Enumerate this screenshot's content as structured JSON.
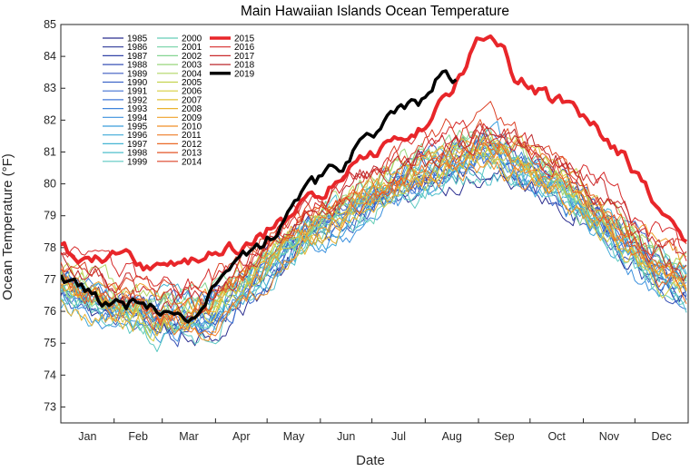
{
  "chart_data": {
    "type": "line",
    "title": "Main Hawaiian Islands Ocean Temperature",
    "xlabel": "Date",
    "ylabel": "Ocean Temperature (°F)",
    "x_ticks": [
      "Jan",
      "Feb",
      "Mar",
      "Apr",
      "May",
      "Jun",
      "Jul",
      "Aug",
      "Sep",
      "Oct",
      "Nov",
      "Dec"
    ],
    "x_range_days": [
      1,
      366
    ],
    "ylim": [
      72.5,
      85
    ],
    "y_ticks": [
      73,
      74,
      75,
      76,
      77,
      78,
      79,
      80,
      81,
      82,
      83,
      84,
      85
    ],
    "grid": false,
    "legend_placement": "top-left",
    "series": [
      {
        "name": "1985",
        "color": "#2a2d8f",
        "base_offset": -0.9,
        "peak_day": 252
      },
      {
        "name": "1986",
        "color": "#2e3a9a",
        "base_offset": -0.6,
        "peak_day": 248
      },
      {
        "name": "1987",
        "color": "#3345a8",
        "base_offset": -0.5,
        "peak_day": 255
      },
      {
        "name": "1988",
        "color": "#3852b5",
        "base_offset": -0.8,
        "peak_day": 244
      },
      {
        "name": "1989",
        "color": "#3b5cc0",
        "base_offset": -0.4,
        "peak_day": 250
      },
      {
        "name": "1990",
        "color": "#3f66c9",
        "base_offset": -0.3,
        "peak_day": 258
      },
      {
        "name": "1991",
        "color": "#4270d2",
        "base_offset": -0.7,
        "peak_day": 246
      },
      {
        "name": "1992",
        "color": "#4179d8",
        "base_offset": -0.6,
        "peak_day": 252
      },
      {
        "name": "1993",
        "color": "#3f85dc",
        "base_offset": -0.5,
        "peak_day": 249
      },
      {
        "name": "1994",
        "color": "#3c91de",
        "base_offset": -0.9,
        "peak_day": 243
      },
      {
        "name": "1995",
        "color": "#3a9ddc",
        "base_offset": -0.4,
        "peak_day": 254
      },
      {
        "name": "1996",
        "color": "#3ea9d8",
        "base_offset": -0.7,
        "peak_day": 250
      },
      {
        "name": "1997",
        "color": "#45b5d2",
        "base_offset": -0.2,
        "peak_day": 256
      },
      {
        "name": "1998",
        "color": "#4fbfcb",
        "base_offset": -0.8,
        "peak_day": 245
      },
      {
        "name": "1999",
        "color": "#5bc8c2",
        "base_offset": -0.9,
        "peak_day": 250
      },
      {
        "name": "2000",
        "color": "#66ceb6",
        "base_offset": -0.6,
        "peak_day": 248
      },
      {
        "name": "2001",
        "color": "#73d2a6",
        "base_offset": -0.4,
        "peak_day": 252
      },
      {
        "name": "2002",
        "color": "#85d592",
        "base_offset": -0.3,
        "peak_day": 250
      },
      {
        "name": "2003",
        "color": "#99d67c",
        "base_offset": -0.2,
        "peak_day": 247
      },
      {
        "name": "2004",
        "color": "#b0d665",
        "base_offset": 0.0,
        "peak_day": 251
      },
      {
        "name": "2005",
        "color": "#c4d34f",
        "base_offset": -0.3,
        "peak_day": 249
      },
      {
        "name": "2006",
        "color": "#d6cd3f",
        "base_offset": -0.5,
        "peak_day": 253
      },
      {
        "name": "2007",
        "color": "#e2c134",
        "base_offset": -0.4,
        "peak_day": 248
      },
      {
        "name": "2008",
        "color": "#eab22e",
        "base_offset": -0.7,
        "peak_day": 250
      },
      {
        "name": "2009",
        "color": "#efa12a",
        "base_offset": -0.2,
        "peak_day": 252
      },
      {
        "name": "2010",
        "color": "#f08f28",
        "base_offset": -0.6,
        "peak_day": 246
      },
      {
        "name": "2011",
        "color": "#ee7c27",
        "base_offset": -0.5,
        "peak_day": 250
      },
      {
        "name": "2012",
        "color": "#ea6826",
        "base_offset": -0.3,
        "peak_day": 254
      },
      {
        "name": "2013",
        "color": "#e45426",
        "base_offset": -0.1,
        "peak_day": 250
      },
      {
        "name": "2014",
        "color": "#dc4126",
        "base_offset": 0.3,
        "peak_day": 252
      },
      {
        "name": "2015",
        "color": "#e8262a",
        "width": 4,
        "points": [
          [
            1,
            78.0
          ],
          [
            15,
            77.6
          ],
          [
            30,
            77.7
          ],
          [
            45,
            77.6
          ],
          [
            60,
            77.2
          ],
          [
            75,
            77.5
          ],
          [
            90,
            77.7
          ],
          [
            105,
            78.0
          ],
          [
            120,
            78.5
          ],
          [
            135,
            79.0
          ],
          [
            150,
            79.6
          ],
          [
            165,
            80.2
          ],
          [
            180,
            80.8
          ],
          [
            195,
            81.3
          ],
          [
            210,
            81.8
          ],
          [
            225,
            82.6
          ],
          [
            235,
            83.4
          ],
          [
            242,
            84.4
          ],
          [
            250,
            84.6
          ],
          [
            258,
            84.3
          ],
          [
            265,
            83.3
          ],
          [
            275,
            83.1
          ],
          [
            285,
            82.7
          ],
          [
            300,
            82.3
          ],
          [
            315,
            81.6
          ],
          [
            330,
            80.8
          ],
          [
            345,
            79.6
          ],
          [
            355,
            78.8
          ],
          [
            366,
            78.3
          ]
        ]
      },
      {
        "name": "2016",
        "color": "#d62b2b",
        "base_offset": 0.4,
        "peak_day": 250
      },
      {
        "name": "2017",
        "color": "#c92a2c",
        "base_offset": 0.2,
        "peak_day": 255
      },
      {
        "name": "2018",
        "color": "#bb282c",
        "base_offset": 0.1,
        "peak_day": 248
      },
      {
        "name": "2019",
        "color": "#000000",
        "width": 3.5,
        "points": [
          [
            1,
            77.0
          ],
          [
            10,
            76.8
          ],
          [
            20,
            76.4
          ],
          [
            30,
            76.2
          ],
          [
            38,
            76.1
          ],
          [
            45,
            76.4
          ],
          [
            55,
            76.1
          ],
          [
            62,
            75.9
          ],
          [
            70,
            75.7
          ],
          [
            75,
            75.8
          ],
          [
            85,
            76.1
          ],
          [
            95,
            77.2
          ],
          [
            105,
            77.6
          ],
          [
            115,
            77.9
          ],
          [
            125,
            78.4
          ],
          [
            135,
            79.3
          ],
          [
            145,
            80.0
          ],
          [
            155,
            80.2
          ],
          [
            165,
            80.6
          ],
          [
            175,
            81.2
          ],
          [
            185,
            81.6
          ],
          [
            195,
            82.1
          ],
          [
            205,
            82.4
          ],
          [
            212,
            82.6
          ],
          [
            220,
            83.3
          ],
          [
            228,
            83.4
          ],
          [
            232,
            83.3
          ]
        ]
      }
    ]
  }
}
